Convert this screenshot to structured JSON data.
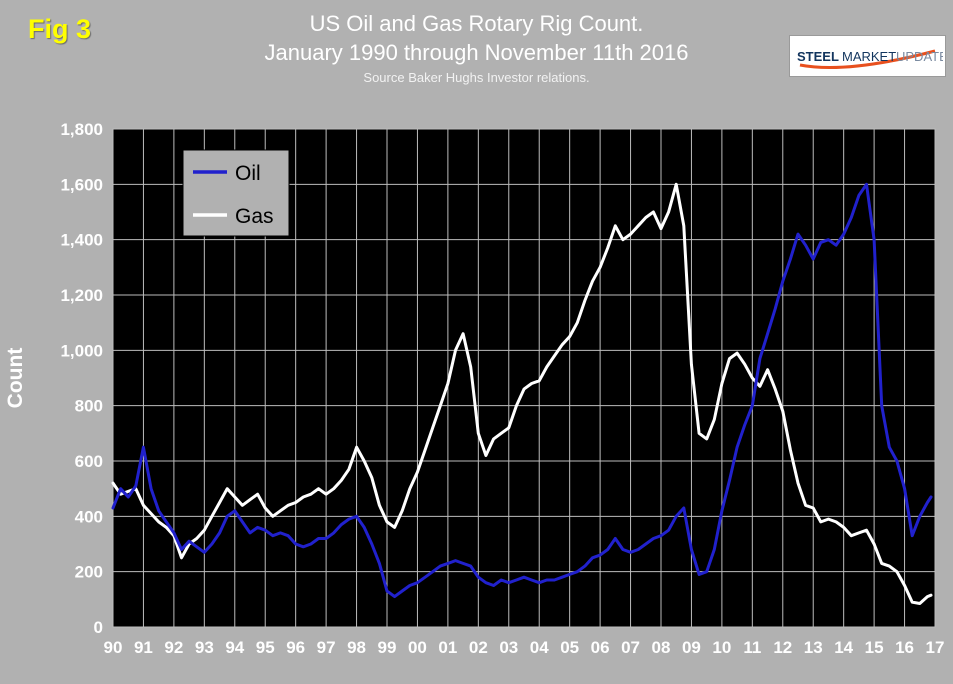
{
  "figure_label": "Fig 3",
  "title_line1": "US Oil and Gas Rotary Rig Count.",
  "title_line2": "January 1990 through November 11th 2016",
  "source": "Source Baker Hughs Investor relations.",
  "logo": {
    "steel": "STEEL",
    "market": "MARKET",
    "update": "UPDATE"
  },
  "colors": {
    "background": "#b1b1b1",
    "plot_background": "#000000",
    "grid": "#bdbdbd",
    "oil_line": "#2121cd",
    "gas_line": "#ffffff",
    "title_text": "#ffffff",
    "figure_label": "#ffff00",
    "legend_background": "#b1b1b1",
    "logo_navy": "#12355e",
    "logo_light_blue": "#7a8aa0",
    "logo_orange": "#e8501e"
  },
  "chart_data": {
    "type": "line",
    "title": "US Oil and Gas Rotary Rig Count.",
    "subtitle": "January 1990 through November 11th 2016",
    "source": "Source Baker Hughs Investor relations.",
    "xlabel": "",
    "ylabel": "Count",
    "ylim": [
      0,
      1800
    ],
    "ytick_step": 200,
    "y_tick_labels": [
      "0",
      "200",
      "400",
      "600",
      "800",
      "1,000",
      "1,200",
      "1,400",
      "1,600",
      "1,800"
    ],
    "xlim": [
      1990,
      2017
    ],
    "x_tick_labels": [
      "90",
      "91",
      "92",
      "93",
      "94",
      "95",
      "96",
      "97",
      "98",
      "99",
      "00",
      "01",
      "02",
      "03",
      "04",
      "05",
      "06",
      "07",
      "08",
      "09",
      "10",
      "11",
      "12",
      "13",
      "14",
      "15",
      "16",
      "17"
    ],
    "grid": true,
    "plot_bg": "#000000",
    "grid_color": "#bdbdbd",
    "legend_bg": "#b1b1b1",
    "legend_position": "upper-left-inside",
    "x": [
      1990,
      1990.25,
      1990.5,
      1990.75,
      1991,
      1991.25,
      1991.5,
      1991.75,
      1992,
      1992.25,
      1992.5,
      1992.75,
      1993,
      1993.25,
      1993.5,
      1993.75,
      1994,
      1994.25,
      1994.5,
      1994.75,
      1995,
      1995.25,
      1995.5,
      1995.75,
      1996,
      1996.25,
      1996.5,
      1996.75,
      1997,
      1997.25,
      1997.5,
      1997.75,
      1998,
      1998.25,
      1998.5,
      1998.75,
      1999,
      1999.25,
      1999.5,
      1999.75,
      2000,
      2000.25,
      2000.5,
      2000.75,
      2001,
      2001.25,
      2001.5,
      2001.75,
      2002,
      2002.25,
      2002.5,
      2002.75,
      2003,
      2003.25,
      2003.5,
      2003.75,
      2004,
      2004.25,
      2004.5,
      2004.75,
      2005,
      2005.25,
      2005.5,
      2005.75,
      2006,
      2006.25,
      2006.5,
      2006.75,
      2007,
      2007.25,
      2007.5,
      2007.75,
      2008,
      2008.25,
      2008.5,
      2008.75,
      2009,
      2009.25,
      2009.5,
      2009.75,
      2010,
      2010.25,
      2010.5,
      2010.75,
      2011,
      2011.25,
      2011.5,
      2011.75,
      2012,
      2012.25,
      2012.5,
      2012.75,
      2013,
      2013.25,
      2013.5,
      2013.75,
      2014,
      2014.25,
      2014.5,
      2014.75,
      2015,
      2015.25,
      2015.5,
      2015.75,
      2016,
      2016.25,
      2016.5,
      2016.75,
      2016.87
    ],
    "series": [
      {
        "name": "Oil",
        "color": "#2121cd",
        "width": 3,
        "values": [
          430,
          500,
          470,
          510,
          650,
          500,
          420,
          380,
          340,
          280,
          310,
          290,
          270,
          300,
          340,
          400,
          420,
          380,
          340,
          360,
          350,
          330,
          340,
          330,
          300,
          290,
          300,
          320,
          320,
          340,
          370,
          390,
          400,
          360,
          300,
          230,
          130,
          110,
          130,
          150,
          160,
          180,
          200,
          220,
          230,
          240,
          230,
          220,
          180,
          160,
          150,
          170,
          160,
          170,
          180,
          170,
          160,
          170,
          170,
          180,
          190,
          200,
          220,
          250,
          260,
          280,
          320,
          280,
          270,
          280,
          300,
          320,
          330,
          350,
          400,
          430,
          280,
          190,
          200,
          280,
          420,
          530,
          650,
          730,
          800,
          970,
          1060,
          1150,
          1250,
          1330,
          1420,
          1380,
          1330,
          1390,
          1400,
          1380,
          1420,
          1480,
          1560,
          1600,
          1400,
          800,
          650,
          600,
          500,
          330,
          400,
          450,
          470
        ]
      },
      {
        "name": "Gas",
        "color": "#ffffff",
        "width": 3,
        "values": [
          520,
          480,
          490,
          500,
          440,
          410,
          380,
          360,
          330,
          250,
          300,
          320,
          350,
          400,
          450,
          500,
          470,
          440,
          460,
          480,
          430,
          400,
          420,
          440,
          450,
          470,
          480,
          500,
          480,
          500,
          530,
          570,
          650,
          600,
          540,
          440,
          380,
          360,
          420,
          500,
          560,
          640,
          720,
          800,
          880,
          1000,
          1060,
          940,
          700,
          620,
          680,
          700,
          720,
          800,
          860,
          880,
          890,
          940,
          980,
          1020,
          1050,
          1100,
          1180,
          1250,
          1300,
          1370,
          1450,
          1400,
          1420,
          1450,
          1480,
          1500,
          1440,
          1500,
          1600,
          1450,
          950,
          700,
          680,
          750,
          880,
          970,
          990,
          950,
          900,
          870,
          930,
          860,
          780,
          640,
          520,
          440,
          430,
          380,
          390,
          380,
          360,
          330,
          340,
          350,
          300,
          230,
          220,
          200,
          150,
          90,
          85,
          110,
          115
        ]
      }
    ]
  }
}
